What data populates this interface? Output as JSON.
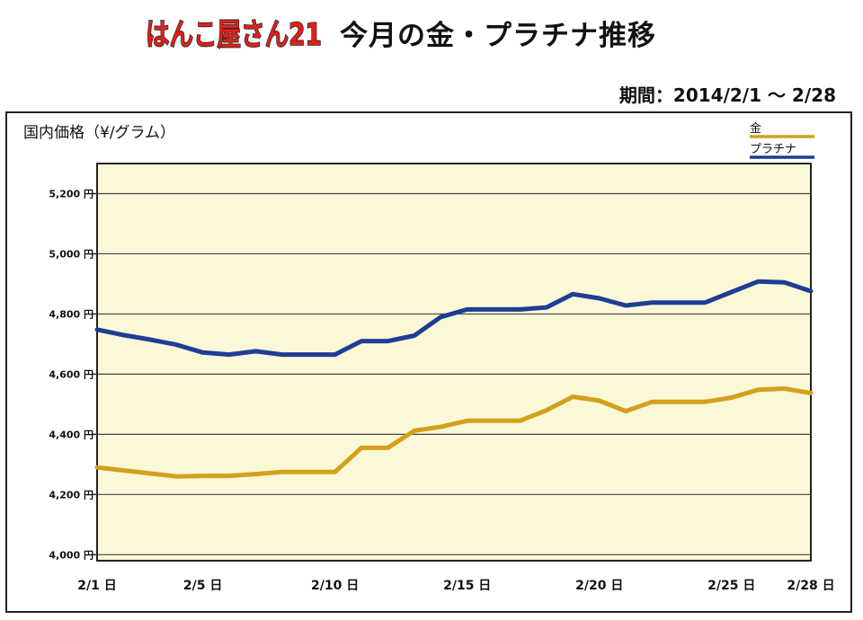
{
  "header": {
    "logo_text": "はんこ屋さん21",
    "title": "今月の金・プラチナ推移",
    "period": "期間：2014/2/1 〜 2/28"
  },
  "colors": {
    "gold": "#D4A01C",
    "platinum": "#1F3C96",
    "plot_bg": "#FAF8D6",
    "logo_red": "#E0201B"
  },
  "chart_data": {
    "type": "line",
    "ylabel": "国内価格（¥/グラム）",
    "ylim": [
      3980,
      5300
    ],
    "yticks": [
      4000,
      4200,
      4400,
      4600,
      4800,
      5000,
      5200
    ],
    "ytick_labels": [
      "4,000 円",
      "4,200 円",
      "4,400 円",
      "4,600 円",
      "4,800 円",
      "5,000 円",
      "5,200 円"
    ],
    "xlim": [
      1,
      28
    ],
    "xticks": [
      1,
      5,
      10,
      15,
      20,
      25,
      28
    ],
    "xtick_labels": [
      "2/1 日",
      "2/5 日",
      "2/10 日",
      "2/15 日",
      "2/20 日",
      "2/25 日",
      "2/28 日"
    ],
    "grid": true,
    "legend_position": "top-right",
    "x": [
      1,
      2,
      3,
      4,
      5,
      6,
      7,
      8,
      9,
      10,
      11,
      12,
      13,
      14,
      15,
      16,
      17,
      18,
      19,
      20,
      21,
      22,
      23,
      24,
      25,
      26,
      27,
      28
    ],
    "series": [
      {
        "name": "金",
        "color": "#D4A01C",
        "values": [
          4290,
          4280,
          4270,
          4260,
          4262,
          4262,
          4268,
          4275,
          4275,
          4275,
          4355,
          4355,
          4412,
          4425,
          4445,
          4445,
          4445,
          4480,
          4525,
          4512,
          4477,
          4508,
          4508,
          4508,
          4522,
          4548,
          4552,
          4537
        ]
      },
      {
        "name": "プラチナ",
        "color": "#1F3C96",
        "values": [
          4748,
          4730,
          4715,
          4698,
          4672,
          4665,
          4676,
          4665,
          4665,
          4665,
          4710,
          4710,
          4728,
          4790,
          4815,
          4815,
          4815,
          4822,
          4866,
          4852,
          4828,
          4838,
          4838,
          4838,
          4873,
          4908,
          4905,
          4876
        ]
      }
    ]
  }
}
